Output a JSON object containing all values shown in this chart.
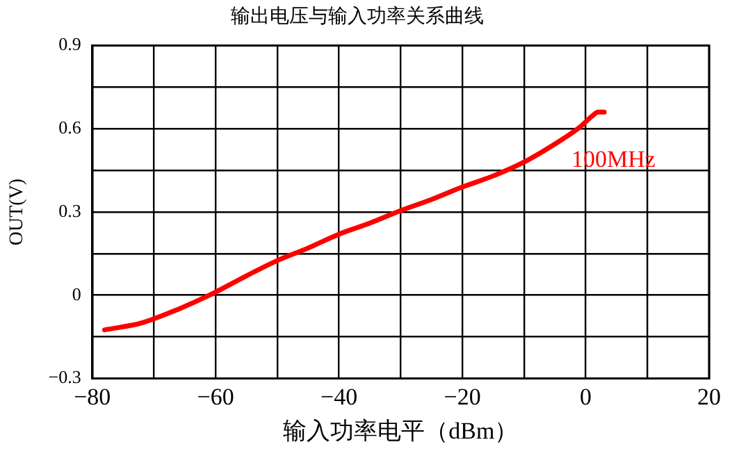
{
  "chart_data": {
    "type": "line",
    "title": "输出电压与输入功率关系曲线",
    "xlabel": "输入功率电平（dBm）",
    "ylabel": "OUT(V)",
    "xlim": [
      -80,
      20
    ],
    "xticks": [
      -80,
      {
        "value": -70,
        "label": null
      },
      -60,
      {
        "value": -50,
        "label": null
      },
      -40,
      {
        "value": -30,
        "label": null
      },
      -20,
      {
        "value": -10,
        "label": null
      },
      0,
      {
        "value": 10,
        "label": null
      },
      20
    ],
    "ylim": [
      -0.3,
      0.9
    ],
    "yticks": [
      -0.3,
      {
        "value": -0.15,
        "label": null
      },
      0,
      {
        "value": 0.15,
        "label": null
      },
      0.3,
      {
        "value": 0.45,
        "label": null
      },
      0.6,
      {
        "value": 0.75,
        "label": null
      },
      0.9
    ],
    "grid": true,
    "legend": false,
    "marker": "none",
    "line_style": "solid",
    "series": [
      {
        "color": "#ff0000",
        "x": [
          -78,
          -72,
          -66,
          -61,
          -55,
          -50,
          -45,
          -40,
          -35,
          -30,
          -25,
          -20,
          -15,
          -10,
          -5,
          -1,
          1,
          2,
          3
        ],
        "values": [
          -0.125,
          -0.1,
          -0.05,
          0.0,
          0.07,
          0.125,
          0.17,
          0.22,
          0.26,
          0.305,
          0.345,
          0.39,
          0.43,
          0.48,
          0.545,
          0.605,
          0.645,
          0.66,
          0.66
        ]
      }
    ],
    "annotations": [
      "100MHz"
    ]
  }
}
